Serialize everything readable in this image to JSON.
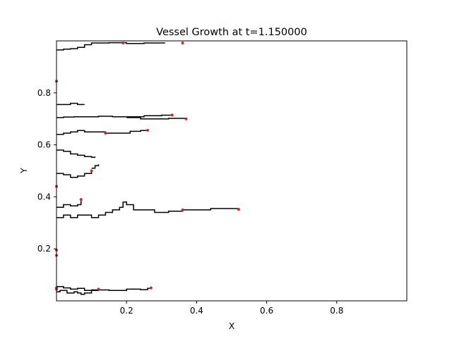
{
  "chart_data": {
    "type": "line",
    "title": "Vessel Growth at t=1.150000",
    "xlabel": "X",
    "ylabel": "Y",
    "xlim": [
      0.0,
      1.0
    ],
    "ylim": [
      0.0,
      1.0
    ],
    "xticks": [
      0.2,
      0.4,
      0.6,
      0.8
    ],
    "yticks": [
      0.2,
      0.4,
      0.6,
      0.8
    ],
    "xtick_labels": [
      "0.2",
      "0.4",
      "0.6",
      "0.8"
    ],
    "ytick_labels": [
      "0.2",
      "0.4",
      "0.6",
      "0.8"
    ],
    "grid": false,
    "series_color": "#000000",
    "tip_color": "#d62728",
    "series": [
      {
        "x": [
          0.0,
          0.02,
          0.04,
          0.06,
          0.08,
          0.1,
          0.15,
          0.2,
          0.24,
          0.26,
          0.27
        ],
        "y": [
          0.055,
          0.05,
          0.045,
          0.048,
          0.04,
          0.042,
          0.04,
          0.045,
          0.043,
          0.048,
          0.05
        ]
      },
      {
        "x": [
          0.0,
          0.01,
          0.03,
          0.05,
          0.06,
          0.07,
          0.08,
          0.1,
          0.12
        ],
        "y": [
          0.035,
          0.04,
          0.03,
          0.035,
          0.03,
          0.025,
          0.03,
          0.04,
          0.045
        ]
      },
      {
        "x": [
          0.0,
          0.02,
          0.04,
          0.06,
          0.08,
          0.1,
          0.12,
          0.14,
          0.16,
          0.18,
          0.19,
          0.2,
          0.22,
          0.25,
          0.28,
          0.32,
          0.36,
          0.4,
          0.44,
          0.48,
          0.52
        ],
        "y": [
          0.32,
          0.33,
          0.32,
          0.33,
          0.33,
          0.32,
          0.33,
          0.34,
          0.35,
          0.36,
          0.38,
          0.37,
          0.35,
          0.35,
          0.34,
          0.345,
          0.35,
          0.35,
          0.355,
          0.355,
          0.352
        ]
      },
      {
        "x": [
          0.0,
          0.02,
          0.04,
          0.06,
          0.07
        ],
        "y": [
          0.36,
          0.37,
          0.365,
          0.37,
          0.39
        ]
      },
      {
        "x": [
          0.0,
          0.02,
          0.04,
          0.06,
          0.08,
          0.1
        ],
        "y": [
          0.49,
          0.485,
          0.475,
          0.48,
          0.49,
          0.5
        ]
      },
      {
        "x": [
          0.0,
          0.02,
          0.04,
          0.06,
          0.08,
          0.1,
          0.12,
          0.14,
          0.15
        ],
        "y": [
          0.64,
          0.645,
          0.65,
          0.655,
          0.65,
          0.65,
          0.65,
          0.645,
          0.645
        ]
      },
      {
        "x": [
          0.15,
          0.18,
          0.21,
          0.24,
          0.26
        ],
        "y": [
          0.645,
          0.645,
          0.652,
          0.655,
          0.656
        ]
      },
      {
        "x": [
          0.0,
          0.02,
          0.05,
          0.08,
          0.12,
          0.16,
          0.2,
          0.25,
          0.3,
          0.33
        ],
        "y": [
          0.705,
          0.707,
          0.708,
          0.708,
          0.71,
          0.708,
          0.708,
          0.712,
          0.714,
          0.715
        ]
      },
      {
        "x": [
          0.2,
          0.24,
          0.28,
          0.32,
          0.35,
          0.37
        ],
        "y": [
          0.705,
          0.7,
          0.7,
          0.702,
          0.702,
          0.7
        ]
      },
      {
        "x": [
          0.0,
          0.02,
          0.04,
          0.06,
          0.08
        ],
        "y": [
          0.755,
          0.755,
          0.76,
          0.755,
          0.755
        ]
      },
      {
        "x": [
          0.0,
          0.02,
          0.04,
          0.06,
          0.08,
          0.1,
          0.15,
          0.2,
          0.25,
          0.31
        ],
        "y": [
          0.965,
          0.968,
          0.97,
          0.975,
          0.985,
          0.992,
          0.993,
          0.99,
          0.992,
          0.992
        ]
      },
      {
        "x": [
          0.0,
          0.02,
          0.04,
          0.06,
          0.08,
          0.1,
          0.11
        ],
        "y": [
          0.58,
          0.575,
          0.565,
          0.56,
          0.555,
          0.552,
          0.55
        ]
      },
      {
        "x": [
          0.1,
          0.11,
          0.12
        ],
        "y": [
          0.51,
          0.52,
          0.525
        ]
      }
    ],
    "tips": {
      "x": [
        0.27,
        0.12,
        0.52,
        0.36,
        0.07,
        0.0,
        0.1,
        0.26,
        0.14,
        0.33,
        0.37,
        0.0,
        0.36,
        0.19,
        0.0,
        0.0,
        0.0,
        0.0
      ],
      "y": [
        0.05,
        0.045,
        0.352,
        0.35,
        0.39,
        0.44,
        0.5,
        0.656,
        0.645,
        0.715,
        0.7,
        0.845,
        0.992,
        0.992,
        0.195,
        0.175,
        0.045,
        0.05
      ]
    }
  }
}
